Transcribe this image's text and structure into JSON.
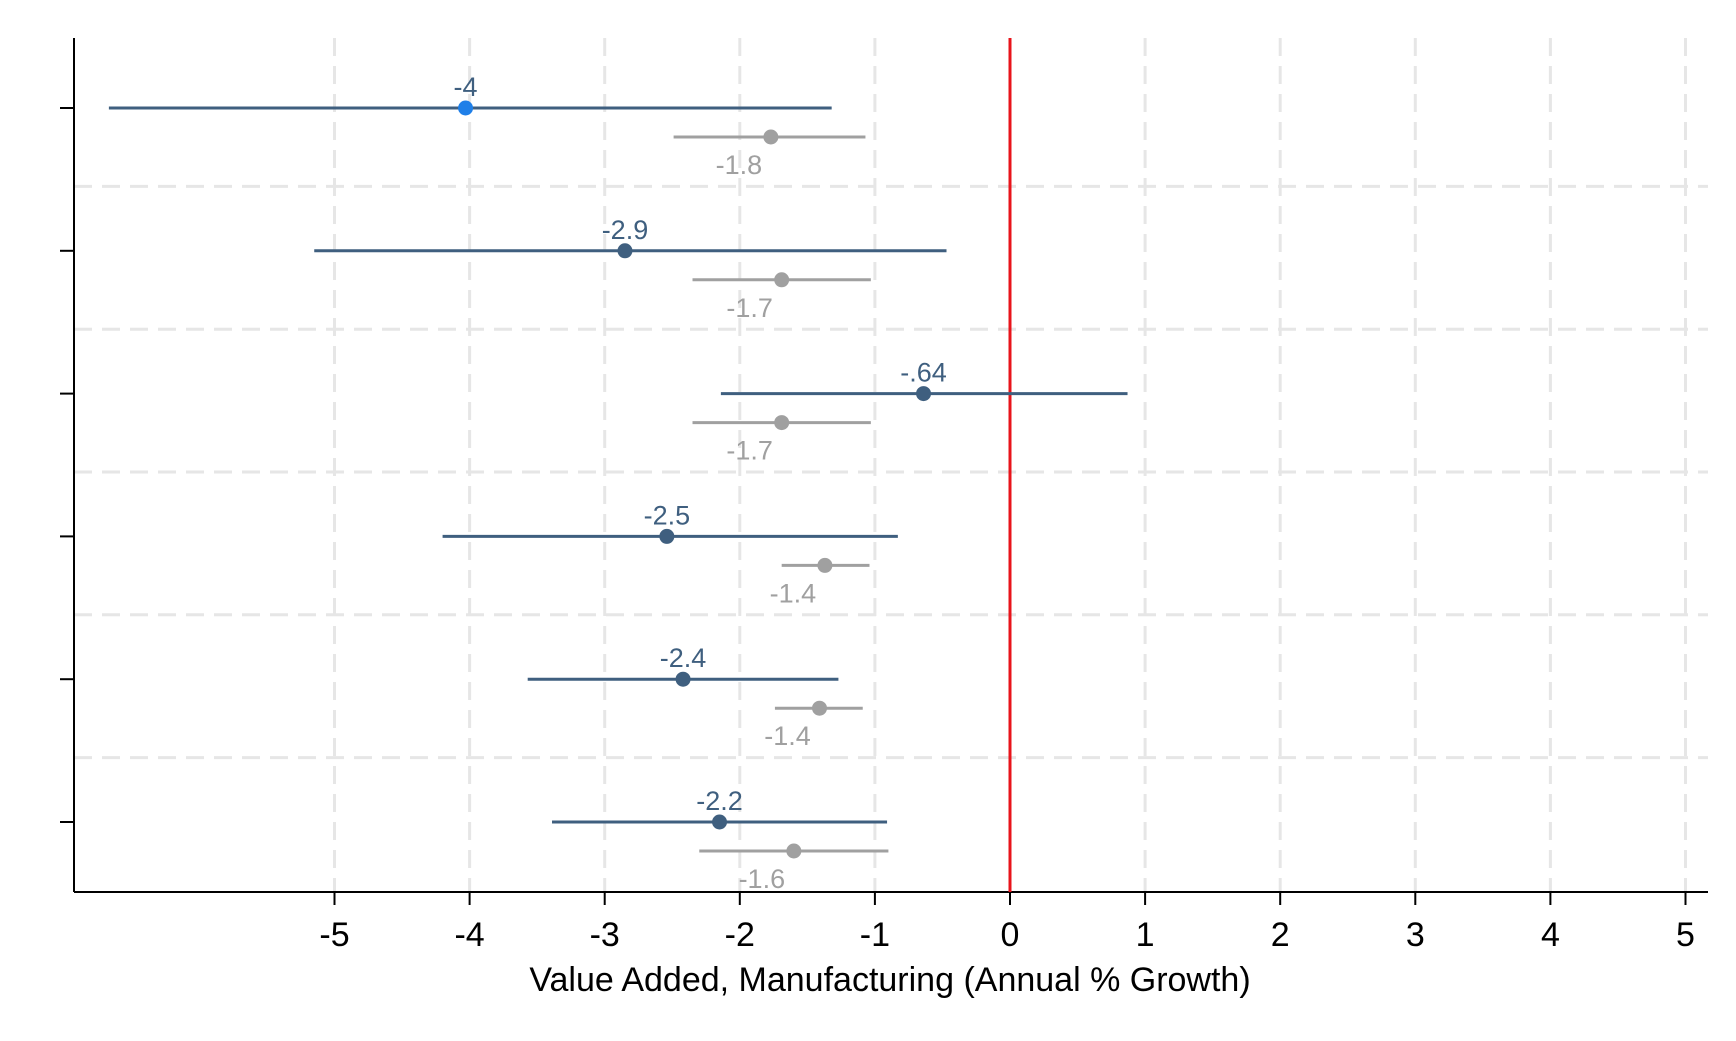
{
  "chart_data": {
    "type": "scatter",
    "subtype": "coefficient-plot",
    "title": "",
    "xlabel": "Value Added, Manufacturing (Annual % Growth)",
    "ylabel": "",
    "xlim": [
      -7,
      5.15
    ],
    "xticks": [
      {
        "value": -5,
        "label": "-5"
      },
      {
        "value": -4,
        "label": "-4"
      },
      {
        "value": -3,
        "label": "-3"
      },
      {
        "value": -2,
        "label": "-2"
      },
      {
        "value": -1,
        "label": "-1"
      },
      {
        "value": 0,
        "label": "0"
      },
      {
        "value": 1,
        "label": "1"
      },
      {
        "value": 2,
        "label": "2"
      },
      {
        "value": 3,
        "label": "3"
      },
      {
        "value": 4,
        "label": "4"
      },
      {
        "value": 5,
        "label": "5"
      }
    ],
    "grid": true,
    "reference_line": {
      "x": 0,
      "color": "#e8141b"
    },
    "colors": {
      "primary": "#3f5f7f",
      "primary_highlight": "#1f7fe8",
      "secondary": "#a0a0a0",
      "reference": "#e8141b",
      "grid": "#e6e6e6",
      "axis": "#000000"
    },
    "rows": [
      {
        "primary": {
          "value": -4.03,
          "ci": [
            -6.67,
            -1.32
          ],
          "label": "-4",
          "highlight": true
        },
        "secondary": {
          "value": -1.77,
          "ci": [
            -2.49,
            -1.07
          ],
          "label": "-1.8"
        }
      },
      {
        "primary": {
          "value": -2.85,
          "ci": [
            -5.15,
            -0.47
          ],
          "label": "-2.9",
          "highlight": false
        },
        "secondary": {
          "value": -1.69,
          "ci": [
            -2.35,
            -1.03
          ],
          "label": "-1.7"
        }
      },
      {
        "primary": {
          "value": -0.64,
          "ci": [
            -2.14,
            0.87
          ],
          "label": "-.64",
          "highlight": false
        },
        "secondary": {
          "value": -1.69,
          "ci": [
            -2.35,
            -1.03
          ],
          "label": "-1.7"
        }
      },
      {
        "primary": {
          "value": -2.54,
          "ci": [
            -4.2,
            -0.83
          ],
          "label": "-2.5",
          "highlight": false
        },
        "secondary": {
          "value": -1.37,
          "ci": [
            -1.69,
            -1.04
          ],
          "label": "-1.4"
        }
      },
      {
        "primary": {
          "value": -2.42,
          "ci": [
            -3.57,
            -1.27
          ],
          "label": "-2.4",
          "highlight": false
        },
        "secondary": {
          "value": -1.41,
          "ci": [
            -1.74,
            -1.09
          ],
          "label": "-1.4"
        }
      },
      {
        "primary": {
          "value": -2.15,
          "ci": [
            -3.39,
            -0.91
          ],
          "label": "-2.2",
          "highlight": false
        },
        "secondary": {
          "value": -1.6,
          "ci": [
            -2.3,
            -0.9
          ],
          "label": "-1.6"
        }
      }
    ]
  }
}
